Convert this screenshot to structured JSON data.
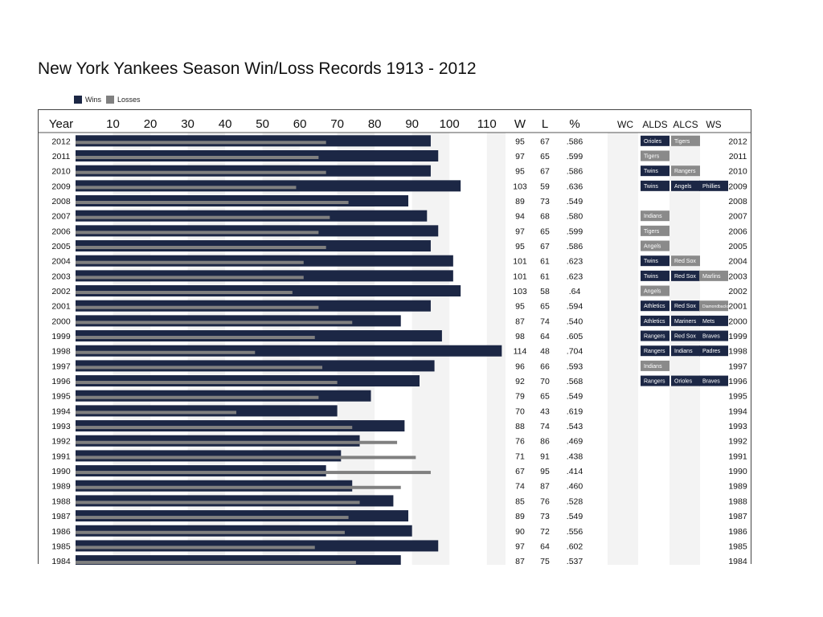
{
  "title": "New York Yankees Season Win/Loss Records 1913 - 2012",
  "legend": [
    {
      "label": "Wins",
      "color": "#1c2745"
    },
    {
      "label": "Losses",
      "color": "#808080"
    }
  ],
  "colors": {
    "wins": "#1c2745",
    "losses": "#808080",
    "postseason_win": "#1c2745",
    "postseason_loss": "#8a8a8a",
    "column_shade": "#f3f3f3",
    "text": "#111111"
  },
  "headers": {
    "year": "Year",
    "w": "W",
    "l": "L",
    "pct": "%",
    "wc": "WC",
    "alds": "ALDS",
    "alcs": "ALCS",
    "ws": "WS"
  },
  "chart_data": {
    "type": "bar",
    "orientation": "horizontal",
    "title": "New York Yankees Season Win/Loss Records 1913 - 2012",
    "xlim": [
      0,
      115
    ],
    "x_ticks": [
      10,
      20,
      30,
      40,
      50,
      60,
      70,
      80,
      90,
      100,
      110
    ],
    "categories": [
      "2012",
      "2011",
      "2010",
      "2009",
      "2008",
      "2007",
      "2006",
      "2005",
      "2004",
      "2003",
      "2002",
      "2001",
      "2000",
      "1999",
      "1998",
      "1997",
      "1996",
      "1995",
      "1994",
      "1993",
      "1992",
      "1991",
      "1990",
      "1989",
      "1988",
      "1987",
      "1986",
      "1985",
      "1984"
    ],
    "series": [
      {
        "name": "Wins",
        "values": [
          95,
          97,
          95,
          103,
          89,
          94,
          97,
          95,
          101,
          101,
          103,
          95,
          87,
          98,
          114,
          96,
          92,
          79,
          70,
          88,
          76,
          71,
          67,
          74,
          85,
          89,
          90,
          97,
          87
        ]
      },
      {
        "name": "Losses",
        "values": [
          67,
          65,
          67,
          59,
          73,
          68,
          65,
          67,
          61,
          61,
          58,
          65,
          74,
          64,
          48,
          66,
          70,
          65,
          43,
          74,
          86,
          91,
          95,
          87,
          76,
          73,
          72,
          64,
          75
        ]
      }
    ],
    "pct": [
      ".586",
      ".599",
      ".586",
      ".636",
      ".549",
      ".580",
      ".599",
      ".586",
      ".623",
      ".623",
      ".64",
      ".594",
      ".540",
      ".605",
      ".704",
      ".593",
      ".568",
      ".549",
      ".619",
      ".543",
      ".469",
      ".438",
      ".414",
      ".460",
      ".528",
      ".549",
      ".556",
      ".602",
      ".537"
    ],
    "postseason": {
      "2012": {
        "ALDS": {
          "opp": "Orioles",
          "won": true
        },
        "ALCS": {
          "opp": "Tigers",
          "won": false
        }
      },
      "2011": {
        "ALDS": {
          "opp": "Tigers",
          "won": false
        }
      },
      "2010": {
        "ALDS": {
          "opp": "Twins",
          "won": true
        },
        "ALCS": {
          "opp": "Rangers",
          "won": false
        }
      },
      "2009": {
        "ALDS": {
          "opp": "Twins",
          "won": true
        },
        "ALCS": {
          "opp": "Angels",
          "won": true
        },
        "WS": {
          "opp": "Phillies",
          "won": true
        }
      },
      "2007": {
        "ALDS": {
          "opp": "Indians",
          "won": false
        }
      },
      "2006": {
        "ALDS": {
          "opp": "Tigers",
          "won": false
        }
      },
      "2005": {
        "ALDS": {
          "opp": "Angels",
          "won": false
        }
      },
      "2004": {
        "ALDS": {
          "opp": "Twins",
          "won": true
        },
        "ALCS": {
          "opp": "Red Sox",
          "won": false
        }
      },
      "2003": {
        "ALDS": {
          "opp": "Twins",
          "won": true
        },
        "ALCS": {
          "opp": "Red Sox",
          "won": true
        },
        "WS": {
          "opp": "Marlins",
          "won": false
        }
      },
      "2002": {
        "ALDS": {
          "opp": "Angels",
          "won": false
        }
      },
      "2001": {
        "ALDS": {
          "opp": "Athletics",
          "won": true
        },
        "ALCS": {
          "opp": "Red Sox",
          "won": true
        },
        "WS": {
          "opp": "Diamondbacks",
          "won": false
        }
      },
      "2000": {
        "ALDS": {
          "opp": "Athletics",
          "won": true
        },
        "ALCS": {
          "opp": "Mariners",
          "won": true
        },
        "WS": {
          "opp": "Mets",
          "won": true
        }
      },
      "1999": {
        "ALDS": {
          "opp": "Rangers",
          "won": true
        },
        "ALCS": {
          "opp": "Red Sox",
          "won": true
        },
        "WS": {
          "opp": "Braves",
          "won": true
        }
      },
      "1998": {
        "ALDS": {
          "opp": "Rangers",
          "won": true
        },
        "ALCS": {
          "opp": "Indians",
          "won": true
        },
        "WS": {
          "opp": "Padres",
          "won": true
        }
      },
      "1997": {
        "ALDS": {
          "opp": "Indians",
          "won": false
        }
      },
      "1996": {
        "ALDS": {
          "opp": "Rangers",
          "won": true
        },
        "ALCS": {
          "opp": "Orioles",
          "won": true
        },
        "WS": {
          "opp": "Braves",
          "won": true
        }
      }
    }
  }
}
